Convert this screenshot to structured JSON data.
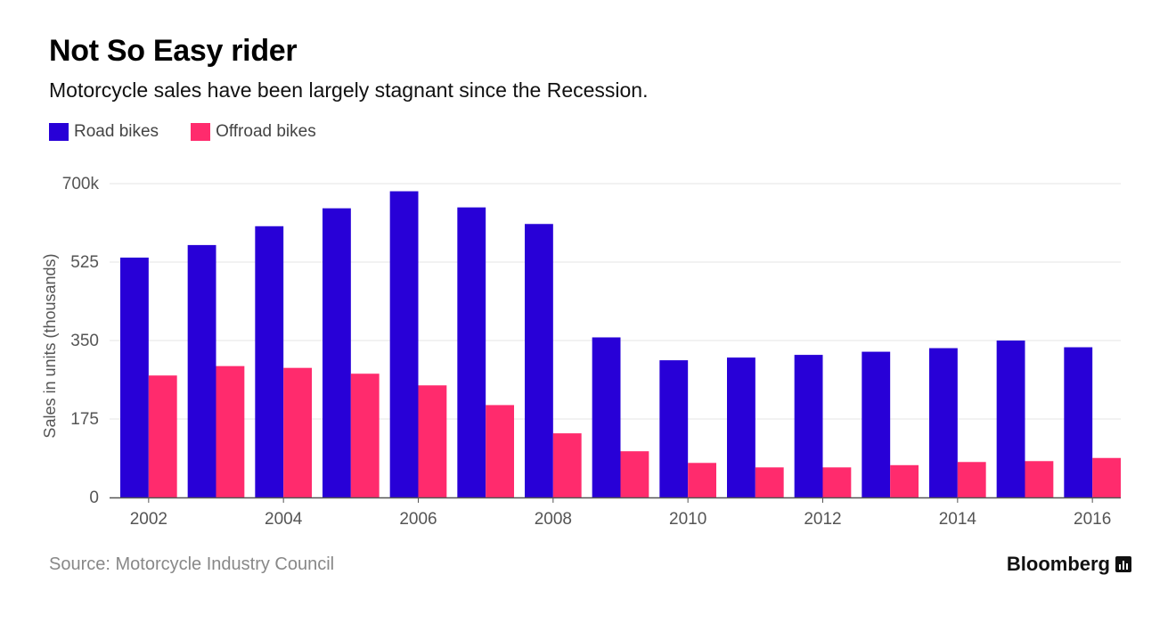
{
  "title": "Not So Easy rider",
  "subtitle": "Motorcycle sales have been largely stagnant since the Recession.",
  "source": "Source: Motorcycle Industry Council",
  "brand": "Bloomberg",
  "chart_data": {
    "type": "bar",
    "title": "Not So Easy rider",
    "subtitle": "Motorcycle sales have been largely stagnant since the Recession.",
    "ylabel": "Sales in units (thousands)",
    "xlabel": "",
    "ylim": [
      0,
      700
    ],
    "yticks": [
      0,
      175,
      350,
      525,
      700
    ],
    "ytick_labels": [
      "0",
      "175",
      "350",
      "525",
      "700k"
    ],
    "categories": [
      "2002",
      "2003",
      "2004",
      "2005",
      "2006",
      "2007",
      "2008",
      "2009",
      "2010",
      "2011",
      "2012",
      "2013",
      "2014",
      "2015",
      "2016"
    ],
    "xtick_labels": [
      "2002",
      "2004",
      "2006",
      "2008",
      "2010",
      "2012",
      "2014",
      "2016"
    ],
    "grid": true,
    "legend_position": "top-left",
    "series": [
      {
        "name": "Road bikes",
        "color": "#2800d7",
        "values": [
          535,
          563,
          605,
          645,
          683,
          647,
          610,
          357,
          306,
          312,
          318,
          325,
          333,
          350,
          335
        ]
      },
      {
        "name": "Offroad bikes",
        "color": "#ff2b6d",
        "values": [
          272,
          293,
          289,
          276,
          250,
          206,
          143,
          103,
          77,
          67,
          67,
          72,
          79,
          81,
          88
        ]
      }
    ]
  }
}
